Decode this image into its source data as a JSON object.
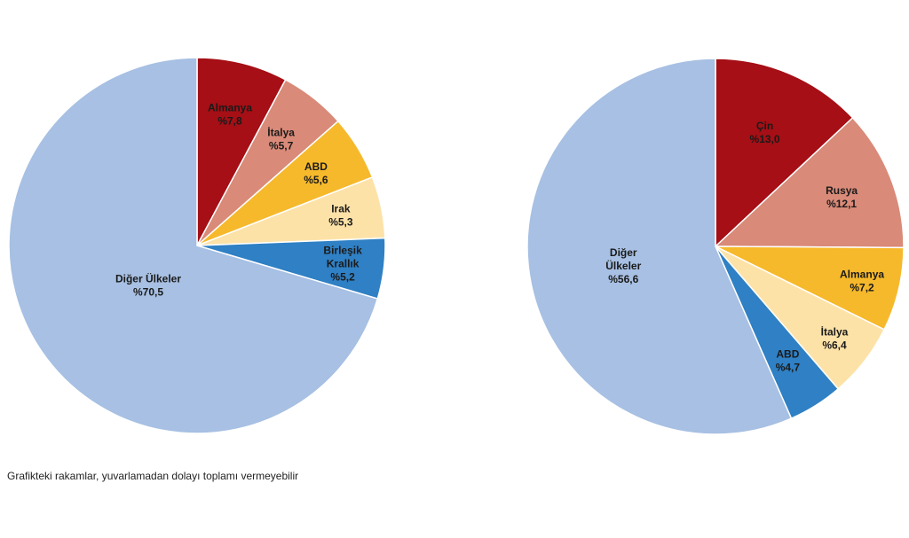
{
  "chart_data": [
    {
      "type": "pie",
      "slices": [
        {
          "label": [
            "Almanya"
          ],
          "value_text": "%7,8",
          "value": 7.8,
          "color": "#a50f15"
        },
        {
          "label": [
            "İtalya"
          ],
          "value_text": "%5,7",
          "value": 5.7,
          "color": "#d98a78"
        },
        {
          "label": [
            "ABD"
          ],
          "value_text": "%5,6",
          "value": 5.6,
          "color": "#f6b92b"
        },
        {
          "label": [
            "Irak"
          ],
          "value_text": "%5,3",
          "value": 5.3,
          "color": "#fde2a8"
        },
        {
          "label": [
            "Birleşik",
            "Krallık"
          ],
          "value_text": "%5,2",
          "value": 5.2,
          "color": "#2f80c4"
        },
        {
          "label": [
            "Diğer Ülkeler"
          ],
          "value_text": "%70,5",
          "value": 70.5,
          "color": "#a7c0e3"
        }
      ]
    },
    {
      "type": "pie",
      "slices": [
        {
          "label": [
            "Çin"
          ],
          "value_text": "%13,0",
          "value": 13.0,
          "color": "#a50f15"
        },
        {
          "label": [
            "Rusya"
          ],
          "value_text": "%12,1",
          "value": 12.1,
          "color": "#d98a78"
        },
        {
          "label": [
            "Almanya"
          ],
          "value_text": "%7,2",
          "value": 7.2,
          "color": "#f6b92b"
        },
        {
          "label": [
            "İtalya"
          ],
          "value_text": "%6,4",
          "value": 6.4,
          "color": "#fde2a8"
        },
        {
          "label": [
            "ABD"
          ],
          "value_text": "%4,7",
          "value": 4.7,
          "color": "#2f80c4"
        },
        {
          "label": [
            "Diğer",
            "Ülkeler"
          ],
          "value_text": "%56,6",
          "value": 56.6,
          "color": "#a7c0e3"
        }
      ]
    }
  ],
  "footnote": "Grafikteki rakamlar, yuvarlamadan dolayı toplamı vermeyebilir"
}
